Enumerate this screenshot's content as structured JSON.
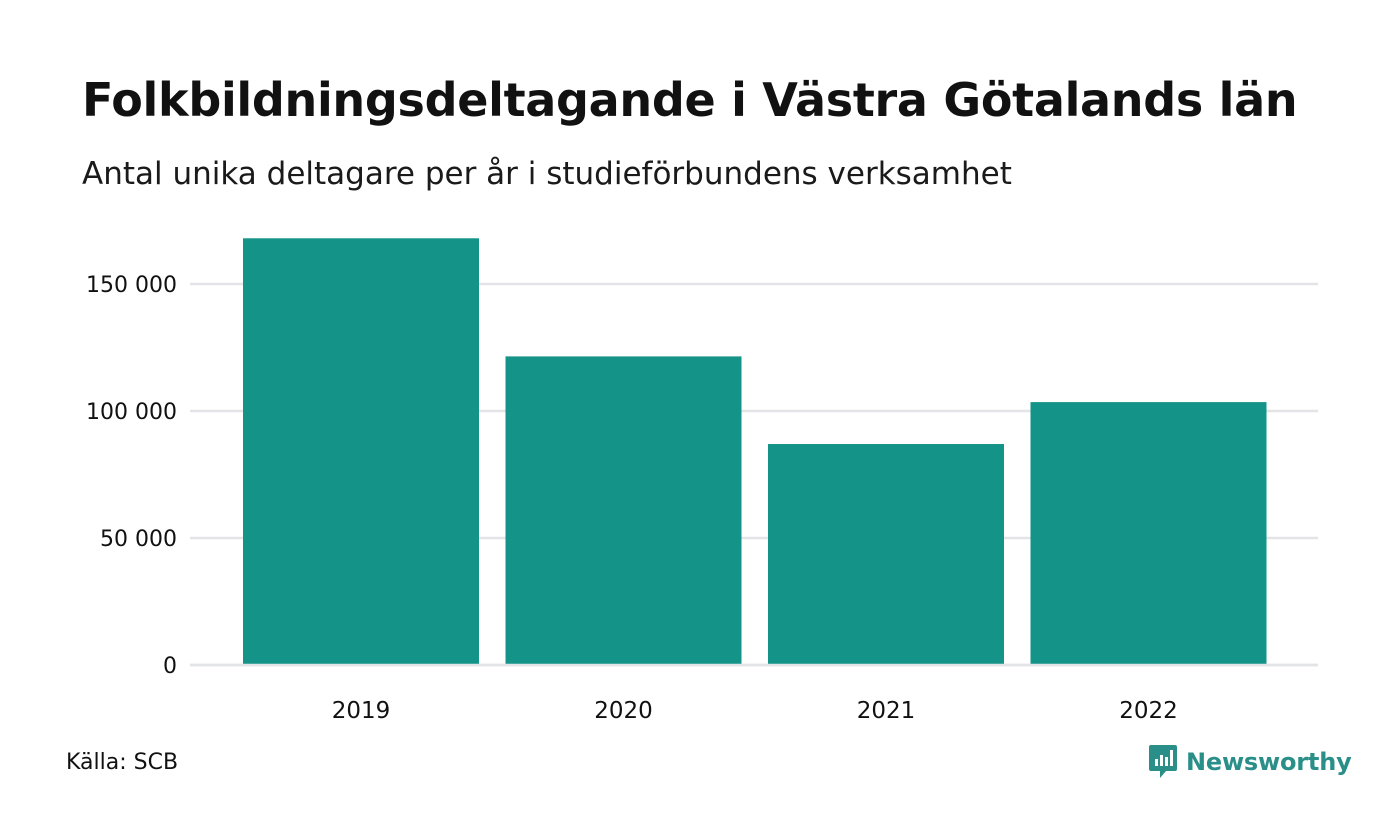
{
  "title": "Folkbildningsdeltagande i Västra Götalands län",
  "subtitle": "Antal unika deltagare per år i studieförbundens verksamhet",
  "source": "Källa: SCB",
  "brand": {
    "name": "Newsworthy",
    "icon": "newsworthy-logo-icon",
    "color": "#2a8f88"
  },
  "colors": {
    "bar": "#149488",
    "grid": "#e2e4e8",
    "text": "#111111"
  },
  "chart_data": {
    "type": "bar",
    "categories": [
      "2019",
      "2020",
      "2021",
      "2022"
    ],
    "values": [
      168000,
      121500,
      87000,
      103500
    ],
    "title": "Folkbildningsdeltagande i Västra Götalands län",
    "subtitle": "Antal unika deltagare per år i studieförbundens verksamhet",
    "xlabel": "",
    "ylabel": "",
    "ylim": [
      0,
      168000
    ],
    "yticks": [
      0,
      50000,
      100000,
      150000
    ],
    "ytick_labels": [
      "0",
      "50 000",
      "100 000",
      "150 000"
    ],
    "grid": true,
    "legend": "none"
  }
}
